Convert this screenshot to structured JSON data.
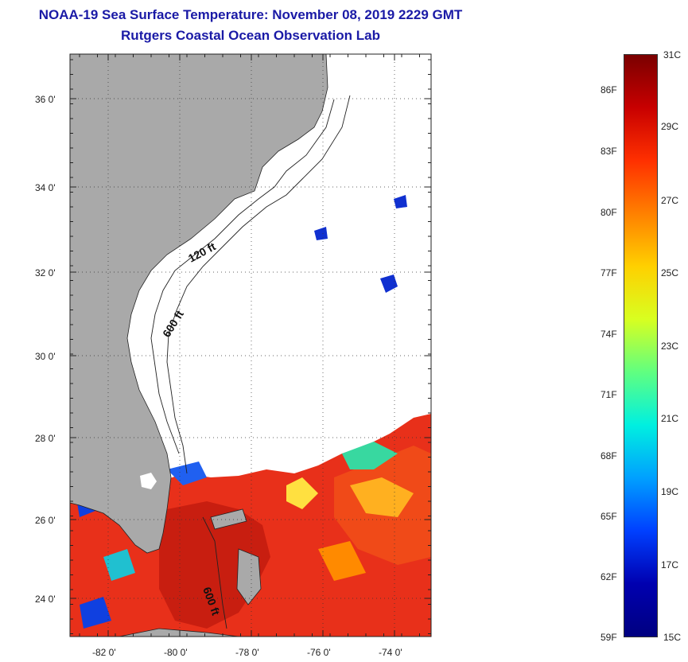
{
  "title": "NOAA-19 Sea Surface Temperature:  November 08, 2019 2229 GMT",
  "subtitle": "Rutgers Coastal Ocean Observation Lab",
  "latitude_labels": [
    "36 0'",
    "34 0'",
    "32 0'",
    "30 0'",
    "28 0'",
    "26 0'",
    "24 0'"
  ],
  "longitude_labels": [
    "-82 0'",
    "-80 0'",
    "-78 0'",
    "-76 0'",
    "-74 0'"
  ],
  "contour_labels": {
    "c120": "120 ft",
    "c600a": "600 ft",
    "c600b": "600 ft"
  },
  "colorbar": {
    "celsius": [
      "31C",
      "29C",
      "27C",
      "25C",
      "23C",
      "21C",
      "19C",
      "17C",
      "15C"
    ],
    "fahrenheit": [
      "86F",
      "83F",
      "80F",
      "77F",
      "74F",
      "71F",
      "68F",
      "65F",
      "62F",
      "59F"
    ],
    "colors": [
      "#7a0000",
      "#c80000",
      "#ff3000",
      "#ff8000",
      "#ffd000",
      "#d8ff20",
      "#60ff80",
      "#00f0e0",
      "#00a0ff",
      "#0040ff",
      "#0000b0",
      "#000080"
    ]
  },
  "colors": {
    "land": "#a9a9a9",
    "ocean_cloud": "#ffffff",
    "warm": "#e8301a",
    "title": "#1a1aa6"
  }
}
